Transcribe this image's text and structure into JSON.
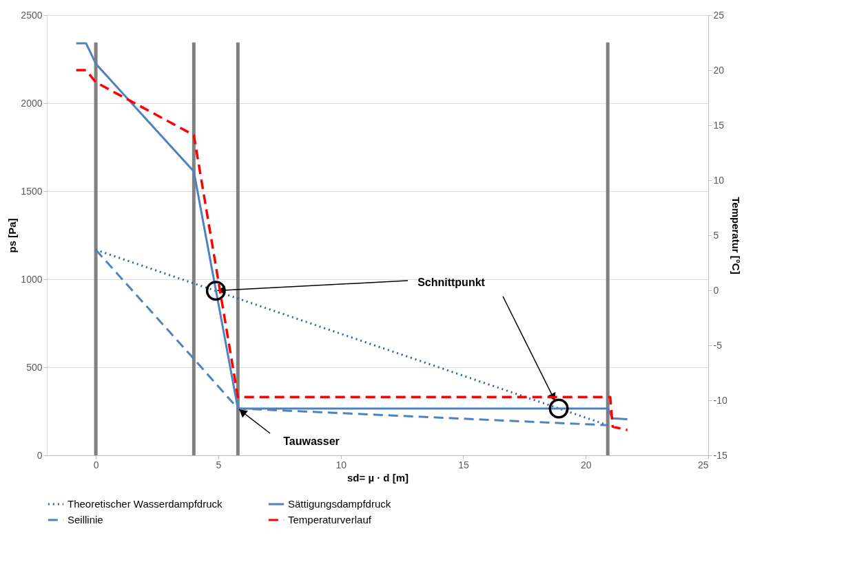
{
  "chart_data": {
    "type": "line",
    "xlabel": "sd= µ · d [m]",
    "ylabel": "ps [Pa]",
    "y2label": "Temperatur [°C]",
    "xlim": [
      -2,
      25
    ],
    "xticks": [
      0,
      5,
      10,
      15,
      20,
      25
    ],
    "ylim": [
      0,
      2500
    ],
    "yticks": [
      0,
      500,
      1000,
      1500,
      2000,
      2500
    ],
    "y2lim": [
      -15,
      25
    ],
    "y2ticks": [
      -15,
      -10,
      -5,
      0,
      5,
      10,
      15,
      20,
      25
    ],
    "grid": "y",
    "legend": "bottom",
    "series": [
      {
        "name": "Theoretischer Wasserdampfdruck",
        "color": "#2e5f9e",
        "line_style": "dotted",
        "x": [
          0,
          20.9
        ],
        "values": [
          1167,
          171
        ]
      },
      {
        "name": "Sättigungsdampfdruck",
        "color": "#4f81bd",
        "line_style": "solid",
        "x": [
          -0.8,
          -0.4,
          0,
          4,
          5.8,
          20.9,
          21.1,
          21.7
        ],
        "values": [
          2340,
          2340,
          2224,
          1612,
          266,
          266,
          210,
          205
        ]
      },
      {
        "name": "Seillinie",
        "color": "#4f81bd",
        "line_style": "dashed",
        "x": [
          0,
          4,
          5.8,
          20.9
        ],
        "values": [
          1167,
          548,
          266,
          171
        ]
      },
      {
        "name": "Temperaturverlauf",
        "color": "#ff0000",
        "line_style": "dashed",
        "axis": "y2",
        "x": [
          -0.8,
          -0.4,
          0,
          4,
          5.8,
          20.9,
          21.0,
          21.1,
          21.7
        ],
        "values": [
          20,
          20,
          18.9,
          14.1,
          -9.7,
          -9.7,
          -9.7,
          -12.4,
          -12.7
        ]
      },
      {
        "color": "#808080",
        "line_style": "solid",
        "x": [
          0,
          0
        ],
        "values": [
          0,
          2345
        ]
      },
      {
        "color": "#808080",
        "line_style": "solid",
        "x": [
          4,
          4
        ],
        "values": [
          0,
          2345
        ]
      },
      {
        "color": "#808080",
        "line_style": "solid",
        "x": [
          5.8,
          5.8
        ],
        "values": [
          0,
          2345
        ]
      },
      {
        "color": "#808080",
        "line_style": "solid",
        "x": [
          20.9,
          20.9
        ],
        "values": [
          0,
          2345
        ]
      },
      {
        "type": "scatter",
        "marker": "circle",
        "color": "#000000",
        "x": [
          4.9,
          18.9
        ],
        "values": [
          935,
          266
        ]
      }
    ],
    "annotations": [
      {
        "text": "Schnittpunkt",
        "x": 4.9,
        "y": 935
      },
      {
        "text": "Tauwasser",
        "x": 5.8,
        "y": 266
      }
    ]
  }
}
